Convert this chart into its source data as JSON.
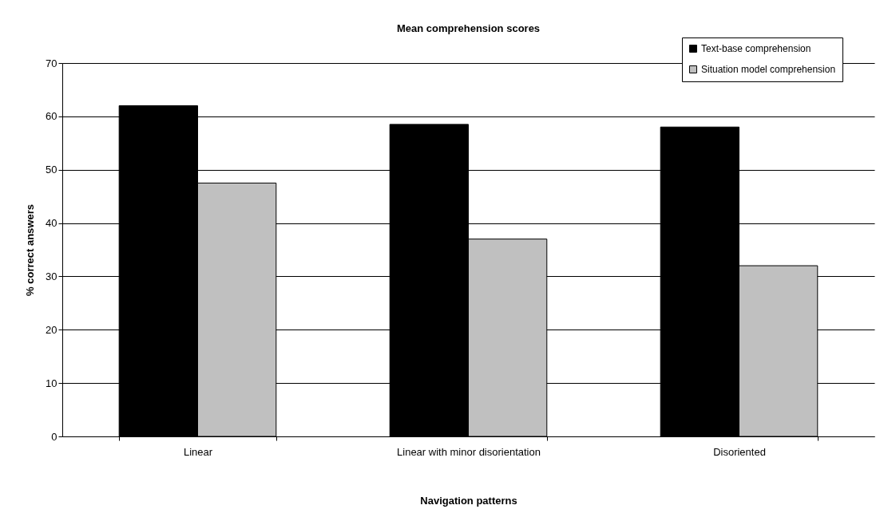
{
  "chart_data": {
    "type": "bar",
    "title": "Mean comprehension scores",
    "xlabel": "Navigation patterns",
    "ylabel": "% correct answers",
    "categories": [
      "Linear",
      "Linear with minor disorientation",
      "Disoriented"
    ],
    "series": [
      {
        "name": "Text-base comprehension",
        "color": "#000000",
        "values": [
          62,
          58.5,
          58
        ]
      },
      {
        "name": "Situation model comprehension",
        "color": "#c0c0c0",
        "values": [
          47.5,
          37,
          32
        ]
      }
    ],
    "ylim": [
      0,
      70
    ],
    "yticks": [
      0,
      10,
      20,
      30,
      40,
      50,
      60,
      70
    ],
    "grid": "y",
    "legend": "top right"
  }
}
